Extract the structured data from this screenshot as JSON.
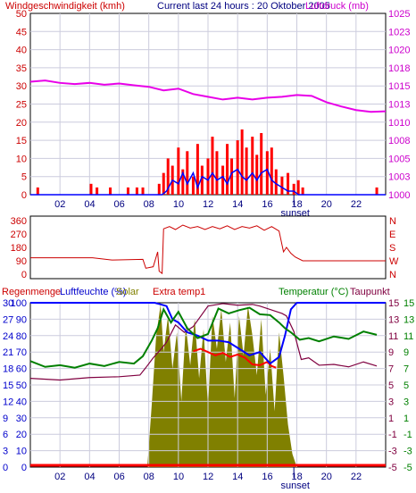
{
  "header": {
    "wind_label": "Windgeschwindigkeit (kmh)",
    "title": "Current last 24 hours : 20 Oktober 2005",
    "pressure_label": "Luftdruck (mb)"
  },
  "bottom_header": {
    "rain_label": "Regenmenge",
    "humidity_label": "Luftfeuchte (%)",
    "solar_label": "Solar",
    "extra_label": "Extra temp1",
    "temp_label": "Temperatur (°C)",
    "dew_label": "Taupunkt"
  },
  "colors": {
    "wind_gust": "#ff0000",
    "wind_avg": "#0000ff",
    "pressure": "#e800e8",
    "direction": "#cc0000",
    "solar": "#808000",
    "humidity": "#0000ff",
    "temperature": "#008000",
    "dewpoint": "#800040",
    "extra_temp": "#ff0000",
    "rain": "#ff0000",
    "grid": "#ccccdd"
  },
  "chart_data": [
    {
      "type": "line",
      "title": "Current last 24 hours : 20 Oktober 2005",
      "x_ticks": [
        "02",
        "04",
        "06",
        "08",
        "10",
        "12",
        "14",
        "16",
        "18",
        "20",
        "22"
      ],
      "sunset_label": "sunset",
      "y_left": {
        "label": "Windgeschwindigkeit (kmh)",
        "ticks": [
          0,
          5,
          10,
          15,
          20,
          25,
          30,
          35,
          40,
          45,
          50
        ]
      },
      "y_right": {
        "label": "Luftdruck (mb)",
        "ticks": [
          1000,
          1003,
          1005,
          1008,
          1010,
          1013,
          1015,
          1018,
          1020,
          1023,
          1025
        ]
      },
      "series": [
        {
          "name": "Luftdruck (mb)",
          "axis": "right",
          "x": [
            0,
            1,
            2,
            3,
            4,
            5,
            6,
            7,
            8,
            9,
            10,
            11,
            12,
            13,
            14,
            15,
            16,
            17,
            18,
            19,
            20,
            21,
            22,
            23,
            24
          ],
          "y": [
            1015.7,
            1015.9,
            1015.5,
            1015.3,
            1015.5,
            1015.2,
            1015.4,
            1015.1,
            1014.9,
            1014.5,
            1014.7,
            1014.1,
            1013.8,
            1013.5,
            1013.7,
            1013.5,
            1013.7,
            1013.8,
            1014.0,
            1013.9,
            1013.2,
            1012.6,
            1012.0,
            1011.7,
            1011.8
          ]
        },
        {
          "name": "gust",
          "axis": "left",
          "x": [
            0.5,
            4.1,
            4.5,
            5.4,
            6.6,
            7.2,
            7.6,
            8.7,
            9.0,
            9.3,
            9.6,
            10.0,
            10.3,
            10.6,
            11.0,
            11.3,
            11.6,
            12.0,
            12.3,
            12.6,
            13.0,
            13.3,
            13.6,
            14.0,
            14.3,
            14.6,
            15.0,
            15.3,
            15.6,
            16.0,
            16.3,
            16.6,
            17.0,
            17.4,
            17.8,
            18.1,
            18.4,
            23.4
          ],
          "y": [
            2,
            3,
            2,
            2,
            2,
            2,
            2,
            3,
            6,
            10,
            8,
            13,
            7,
            12,
            5,
            14,
            8,
            10,
            16,
            12,
            8,
            14,
            10,
            15,
            18,
            13,
            16,
            11,
            17,
            12,
            13,
            7,
            5,
            6,
            3,
            4,
            2,
            2
          ]
        },
        {
          "name": "average",
          "axis": "left",
          "x": [
            0,
            8.9,
            9.2,
            9.6,
            10.0,
            10.3,
            10.6,
            11.0,
            11.3,
            11.6,
            12.0,
            12.3,
            12.6,
            13.0,
            13.3,
            13.6,
            14.0,
            14.3,
            14.6,
            15.0,
            15.3,
            15.6,
            16.0,
            16.3,
            16.6,
            17.0,
            17.4,
            17.8,
            18.1,
            24
          ],
          "y": [
            0,
            0,
            1,
            4,
            3,
            6,
            3,
            6,
            2,
            5,
            4,
            6,
            4,
            5,
            3,
            6,
            7,
            5,
            4,
            6,
            4,
            6,
            7,
            4,
            3,
            2,
            1,
            1,
            0,
            0
          ]
        }
      ]
    },
    {
      "type": "line",
      "y_left": {
        "ticks": [
          0,
          90,
          180,
          270,
          360
        ]
      },
      "y_right": {
        "ticks": [
          "N",
          "W",
          "S",
          "E",
          "N"
        ]
      },
      "series": [
        {
          "name": "direction",
          "x": [
            0,
            4.2,
            5.5,
            7.6,
            7.8,
            8.3,
            8.6,
            8.7,
            8.9,
            9.0,
            9.4,
            9.8,
            10.3,
            10.8,
            11.3,
            11.8,
            12.3,
            12.8,
            13.3,
            13.8,
            14.3,
            14.8,
            15.3,
            15.8,
            16.3,
            16.8,
            17.1,
            17.3,
            17.6,
            17.9,
            18.4,
            24
          ],
          "y": [
            110,
            110,
            95,
            100,
            40,
            50,
            150,
            20,
            5,
            305,
            320,
            300,
            330,
            310,
            320,
            300,
            320,
            305,
            325,
            300,
            320,
            310,
            325,
            295,
            320,
            290,
            150,
            180,
            140,
            115,
            90,
            90
          ]
        }
      ]
    },
    {
      "type": "area",
      "x_ticks": [
        "02",
        "04",
        "06",
        "08",
        "10",
        "12",
        "14",
        "16",
        "18",
        "20",
        "22"
      ],
      "sunset_label": "sunset",
      "y_left_rain": {
        "label": "Regenmenge",
        "ticks": [
          0,
          3,
          6,
          9,
          12,
          15,
          18,
          21,
          24,
          27,
          30
        ]
      },
      "y_left_humidity": {
        "label": "Luftfeuchte (%)",
        "ticks": [
          0,
          10,
          20,
          30,
          40,
          50,
          60,
          70,
          80,
          90,
          100
        ]
      },
      "y_right_temp": {
        "label": "Temperatur (°C)",
        "ticks": [
          -5,
          -3,
          -1,
          1,
          3,
          5,
          7,
          9,
          11,
          13,
          15
        ]
      },
      "y_right_dew": {
        "label": "Taupunkt",
        "ticks": [
          -5,
          -3,
          -1,
          1,
          3,
          5,
          7,
          9,
          11,
          13,
          15
        ]
      },
      "series": [
        {
          "name": "Solar",
          "x": [
            7.9,
            8.2,
            8.5,
            8.8,
            9.0,
            9.3,
            9.6,
            9.9,
            10.2,
            10.5,
            10.8,
            11.1,
            11.4,
            11.7,
            12.0,
            12.3,
            12.6,
            12.9,
            13.2,
            13.5,
            13.8,
            14.1,
            14.4,
            14.7,
            15.0,
            15.3,
            15.6,
            15.9,
            16.2,
            16.5,
            16.8,
            17.1,
            17.4,
            17.7,
            18.0
          ],
          "y": [
            0,
            38,
            80,
            99,
            70,
            92,
            60,
            82,
            40,
            86,
            62,
            90,
            54,
            84,
            36,
            92,
            72,
            96,
            64,
            88,
            42,
            92,
            68,
            98,
            80,
            56,
            90,
            44,
            72,
            34,
            82,
            56,
            26,
            8,
            0
          ]
        },
        {
          "name": "Temperatur (°C)",
          "x": [
            0,
            1,
            2,
            3,
            4,
            5,
            6,
            7,
            7.6,
            8.2,
            8.6,
            9.0,
            9.5,
            10.0,
            10.6,
            11.3,
            12.0,
            12.7,
            13.4,
            14.1,
            14.8,
            15.5,
            16.2,
            16.8,
            17.2,
            17.6,
            18.2,
            18.8,
            19.5,
            20.5,
            21.5,
            22.5,
            23.4
          ],
          "y": [
            7.9,
            7.2,
            7.4,
            7.1,
            7.6,
            7.3,
            7.8,
            7.6,
            8.5,
            10.4,
            11.9,
            14.2,
            12.6,
            13.9,
            11.9,
            10.7,
            11.2,
            14.3,
            13.7,
            14.1,
            14.4,
            13.6,
            13.5,
            12.6,
            11.9,
            11.4,
            10.5,
            10.7,
            10.3,
            10.9,
            10.6,
            11.5,
            11.1
          ]
        },
        {
          "name": "Taupunkt",
          "x": [
            0,
            2,
            4,
            6,
            7.4,
            7.8,
            8.3,
            8.8,
            9.2,
            9.8,
            10.4,
            11.0,
            12.0,
            13.0,
            14.0,
            15.0,
            15.5,
            16.0,
            16.5,
            17.0,
            17.3,
            17.8,
            18.3,
            18.8,
            19.5,
            20.5,
            21.5,
            22.5,
            23.4
          ],
          "y": [
            5.8,
            5.6,
            5.9,
            6.0,
            6.2,
            7.1,
            8.3,
            9.3,
            10.2,
            12.3,
            11.4,
            12.1,
            14.6,
            14.9,
            14.7,
            14.8,
            14.6,
            14.3,
            14.0,
            13.7,
            13.4,
            11.5,
            8.1,
            8.3,
            7.4,
            7.5,
            7.2,
            7.8,
            7.3
          ]
        },
        {
          "name": "Extra temp1",
          "x": [
            11.0,
            11.5,
            12.0,
            12.5,
            13.0,
            13.5,
            14.0,
            14.5,
            15.0,
            15.5,
            16.0,
            16.3,
            16.6
          ],
          "y": [
            9.1,
            9.4,
            9.0,
            8.6,
            8.9,
            8.4,
            8.7,
            8.3,
            7.5,
            7.4,
            7.8,
            7.3,
            7.1
          ]
        },
        {
          "name": "Luftfeuchte (%)",
          "x": [
            0,
            8.4,
            8.8,
            9.2,
            9.6,
            10.0,
            10.6,
            11.3,
            12.0,
            12.7,
            13.4,
            14.1,
            14.8,
            15.5,
            16.2,
            16.8,
            17.2,
            17.6,
            18.0,
            24
          ],
          "y": [
            100,
            100,
            99,
            98,
            90,
            88,
            82,
            80,
            77,
            77,
            76,
            72,
            68,
            70,
            63,
            67,
            80,
            96,
            100,
            100
          ]
        },
        {
          "name": "Regenmenge",
          "x": [
            0,
            24
          ],
          "y": [
            0,
            0
          ]
        }
      ]
    }
  ]
}
